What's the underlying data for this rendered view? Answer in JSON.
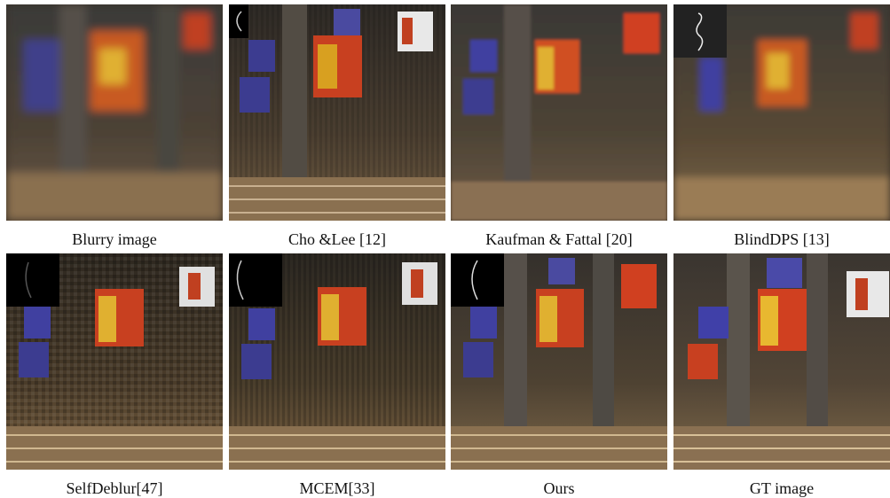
{
  "figure": {
    "panels": [
      {
        "caption": "Blurry image",
        "has_kernel_inset": false,
        "style": "blur"
      },
      {
        "caption": "Cho &Lee [12]",
        "has_kernel_inset": true,
        "style": "ringing"
      },
      {
        "caption": "Kaufman & Fattal [20]",
        "has_kernel_inset": false,
        "style": "soft"
      },
      {
        "caption": "BlindDPS [13]",
        "has_kernel_inset": true,
        "style": "blur"
      },
      {
        "caption": "SelfDeblur[47]",
        "has_kernel_inset": true,
        "style": "noisy"
      },
      {
        "caption": "MCEM[33]",
        "has_kernel_inset": true,
        "style": "noisy"
      },
      {
        "caption": "Ours",
        "has_kernel_inset": true,
        "style": "sharp"
      },
      {
        "caption": "GT image",
        "has_kernel_inset": false,
        "style": "sharp"
      }
    ],
    "colors": {
      "wall": "#5a4a3a",
      "banner_blue": "#3a3a8a",
      "banner_red": "#c0401e",
      "banner_gold": "#d8a020",
      "chairs": "#a08560"
    }
  }
}
